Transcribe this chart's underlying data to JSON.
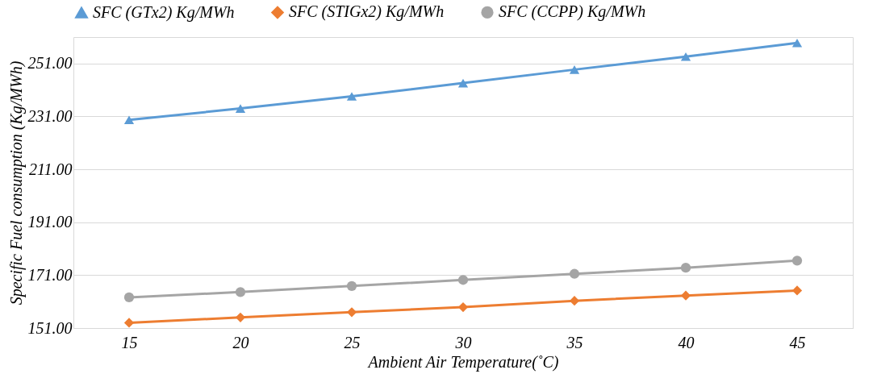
{
  "chart_data": {
    "type": "line",
    "xlabel": "Ambient Air Temperature(˚C)",
    "ylabel": "Specific Fuel consumption (Kg/MWh)",
    "categories": [
      "15",
      "20",
      "25",
      "30",
      "35",
      "40",
      "45"
    ],
    "series": [
      {
        "name": "SFC (GTx2) Kg/MWh",
        "color": "#5b9bd5",
        "marker": "triangle",
        "values": [
          229.7,
          234.0,
          238.6,
          243.6,
          248.7,
          253.6,
          258.8
        ]
      },
      {
        "name": "SFC (STIGx2) Kg/MWh",
        "color": "#ed7d31",
        "marker": "diamond",
        "values": [
          153.0,
          155.0,
          157.0,
          158.9,
          161.3,
          163.3,
          165.2
        ]
      },
      {
        "name": "SFC (CCPP) Kg/MWh",
        "color": "#a5a5a5",
        "marker": "circle",
        "values": [
          162.6,
          164.6,
          166.9,
          169.2,
          171.5,
          173.8,
          176.5
        ]
      }
    ],
    "ylim": [
      151,
      261
    ],
    "yticks": [
      {
        "value": 151,
        "label": "151.00"
      },
      {
        "value": 171,
        "label": "171.00"
      },
      {
        "value": 191,
        "label": "191.00"
      },
      {
        "value": 211,
        "label": "211.00"
      },
      {
        "value": 231,
        "label": "231.00"
      },
      {
        "value": 251,
        "label": "251.00"
      }
    ],
    "grid": "y",
    "legend": "top",
    "line_style": "solid"
  }
}
